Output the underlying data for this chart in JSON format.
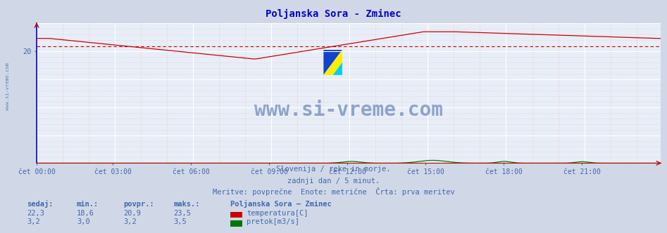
{
  "title": "Poljanska Sora - Zminec",
  "title_color": "#0000cc",
  "bg_color": "#d0d8e8",
  "plot_bg_color": "#e8eef8",
  "grid_color_major": "#ffffff",
  "grid_color_minor": "#e8b8b8",
  "text_color": "#4466aa",
  "x_labels": [
    "čet 00:00",
    "čet 03:00",
    "čet 06:00",
    "čet 09:00",
    "čet 12:00",
    "čet 15:00",
    "čet 18:00",
    "čet 21:00"
  ],
  "x_ticks_norm": [
    0.0,
    0.125,
    0.25,
    0.375,
    0.5,
    0.625,
    0.75,
    0.875
  ],
  "y_label_val": 20,
  "y_min": 0,
  "y_max": 25,
  "total_points": 288,
  "temp_color": "#cc0000",
  "flow_color": "#007700",
  "avg_temp": 20.9,
  "watermark": "www.si-vreme.com",
  "watermark_color": "#4466aa",
  "subtitle1": "Slovenija / reke in morje.",
  "subtitle2": "zadnji dan / 5 minut.",
  "subtitle3": "Meritve: povprečne  Enote: metrične  Črta: prva meritev",
  "legend_title": "Poljanska Sora – Zminec",
  "legend_temp": "temperatura[C]",
  "legend_flow": "pretok[m3/s]",
  "label_sedaj": "sedaj:",
  "label_min": "min.:",
  "label_povpr": "povpr.:",
  "label_maks": "maks.:",
  "val_sedaj_temp": "22,3",
  "val_min_temp": "18,6",
  "val_avg_temp": "20,9",
  "val_max_temp": "23,5",
  "val_sedaj_flow": "3,2",
  "val_min_flow": "3,0",
  "val_avg_flow": "3,2",
  "val_max_flow": "3,5"
}
